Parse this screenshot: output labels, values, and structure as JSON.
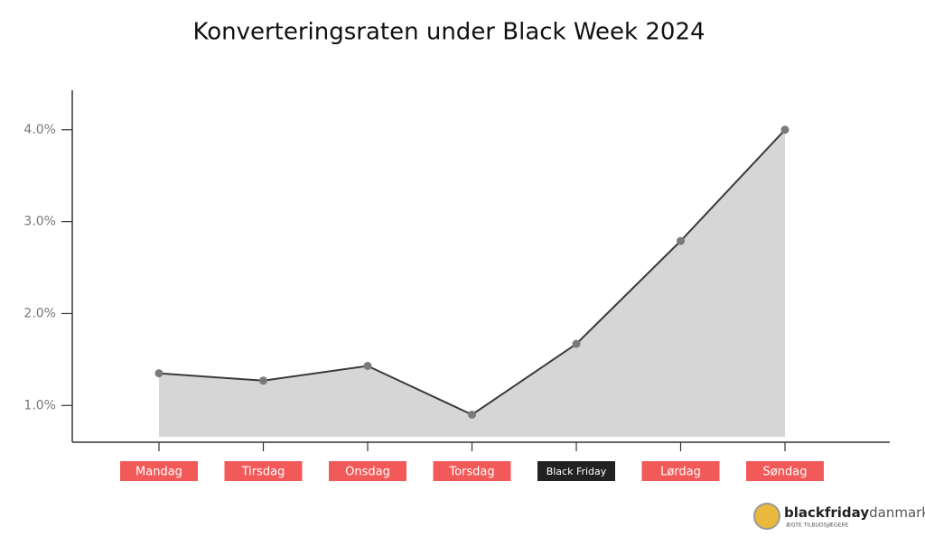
{
  "chart_data": {
    "type": "line",
    "title": "Konverteringsraten under Black Week 2024",
    "categories": [
      "Mandag",
      "Tirsdag",
      "Onsdag",
      "Torsdag",
      "Black Friday",
      "Lørdag",
      "Søndag"
    ],
    "category_colors": [
      "#f25a5a",
      "#f25a5a",
      "#f25a5a",
      "#f25a5a",
      "#222222",
      "#f25a5a",
      "#f25a5a"
    ],
    "series": [
      {
        "name": "Konverteringsrate",
        "color": "#3a3a3a",
        "values": [
          1.35,
          1.27,
          1.43,
          0.9,
          1.67,
          2.79,
          4.0
        ]
      }
    ],
    "fill_color": "#d6d6d6",
    "marker_color": "#7a7a7a",
    "ylim": [
      0.6,
      4.43
    ],
    "yticks": [
      {
        "value": 1,
        "label": "1.0%"
      },
      {
        "value": 2,
        "label": "2.0%"
      },
      {
        "value": 3,
        "label": "3.0%"
      },
      {
        "value": 4,
        "label": "4.0%"
      }
    ],
    "grid": false
  },
  "logo": {
    "brand": "blackfriday",
    "brand_suffix": "danmark",
    "tagline": "ÆGTE TILBUDSJÆGERE"
  }
}
